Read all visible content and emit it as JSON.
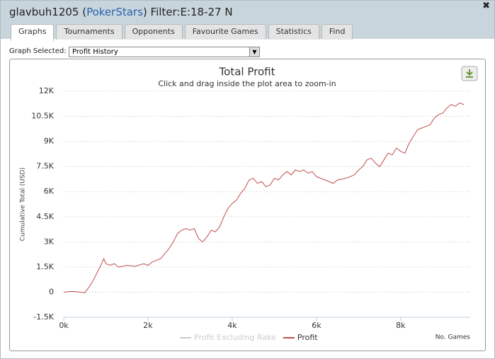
{
  "header": {
    "title_prefix": "glavbuh1205 (",
    "site": "PokerStars",
    "title_suffix": ") Filter:E:18-27 N"
  },
  "tabs": [
    "Graphs",
    "Tournaments",
    "Opponents",
    "Favourite Games",
    "Statistics",
    "Find"
  ],
  "graph_selector": {
    "label": "Graph Selected:",
    "value": "Profit History"
  },
  "chart_data": {
    "type": "line",
    "title": "Total Profit",
    "subtitle": "Click and drag inside the plot area to zoom-in",
    "y_label": "Cumulative Total (USD)",
    "x_label": "No. Games",
    "x": [
      0,
      200,
      400,
      500,
      600,
      700,
      800,
      900,
      950,
      1000,
      1100,
      1200,
      1300,
      1500,
      1700,
      1900,
      2000,
      2100,
      2300,
      2400,
      2500,
      2600,
      2700,
      2800,
      2900,
      3000,
      3100,
      3200,
      3300,
      3400,
      3500,
      3600,
      3700,
      3800,
      3900,
      4000,
      4100,
      4200,
      4300,
      4400,
      4500,
      4600,
      4700,
      4800,
      4900,
      5000,
      5100,
      5200,
      5300,
      5400,
      5500,
      5600,
      5700,
      5800,
      5900,
      6000,
      6200,
      6400,
      6500,
      6700,
      6900,
      7000,
      7100,
      7200,
      7300,
      7400,
      7500,
      7600,
      7700,
      7800,
      7900,
      8000,
      8100,
      8200,
      8300,
      8400,
      8500,
      8600,
      8700,
      8800,
      8900,
      9000,
      9100,
      9200,
      9300,
      9400,
      9500
    ],
    "series": [
      {
        "name": "Profit Excluding Rake",
        "color": "#cccccc",
        "visible": false
      },
      {
        "name": "Profit",
        "color": "#c0504d",
        "visible": true,
        "values": [
          0,
          50,
          0,
          -30,
          300,
          700,
          1200,
          1700,
          2000,
          1700,
          1600,
          1700,
          1500,
          1600,
          1550,
          1700,
          1600,
          1800,
          2000,
          2300,
          2600,
          3000,
          3500,
          3700,
          3800,
          3700,
          3800,
          3200,
          3000,
          3300,
          3700,
          3600,
          3900,
          4500,
          5000,
          5300,
          5500,
          5900,
          6200,
          6700,
          6800,
          6500,
          6600,
          6300,
          6400,
          6800,
          6700,
          7000,
          7200,
          7000,
          7300,
          7200,
          7300,
          7100,
          7200,
          6900,
          6700,
          6500,
          6700,
          6800,
          7000,
          7300,
          7500,
          7900,
          8000,
          7700,
          7500,
          7900,
          8300,
          8200,
          8600,
          8400,
          8300,
          8900,
          9300,
          9700,
          9800,
          9900,
          10000,
          10400,
          10600,
          10700,
          11000,
          11200,
          11100,
          11300,
          11200
        ]
      }
    ],
    "xlim": [
      0,
      9650
    ],
    "xticks": [
      {
        "value": 0,
        "label": "0k"
      },
      {
        "value": 2000,
        "label": "2k"
      },
      {
        "value": 4000,
        "label": "4k"
      },
      {
        "value": 6000,
        "label": "6k"
      },
      {
        "value": 8000,
        "label": "8k"
      }
    ],
    "ylim": [
      -1500,
      12000
    ],
    "yticks": [
      {
        "value": -1500,
        "label": "-1.5K"
      },
      0,
      {
        "value": 1500,
        "label": "1.5K"
      },
      {
        "value": 3000,
        "label": "3K"
      },
      {
        "value": 4500,
        "label": "4.5K"
      },
      {
        "value": 6000,
        "label": "6K"
      },
      {
        "value": 7500,
        "label": "7.5K"
      },
      {
        "value": 9000,
        "label": "9K"
      },
      {
        "value": 10500,
        "label": "10.5K"
      },
      {
        "value": 12000,
        "label": "12K"
      }
    ],
    "grid": true
  }
}
